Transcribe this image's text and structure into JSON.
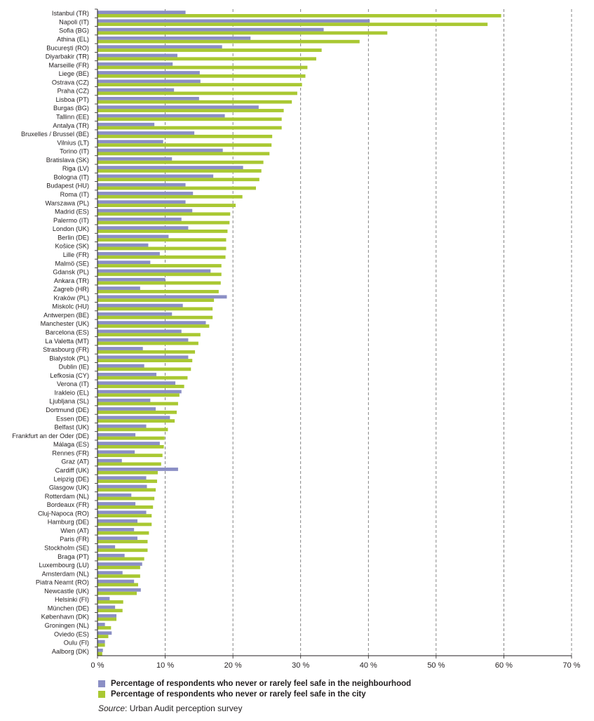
{
  "chart_data": {
    "type": "bar",
    "orientation": "horizontal",
    "categories": [
      "Istanbul (TR)",
      "Napoli (IT)",
      "Sofia (BG)",
      "Athina (EL)",
      "Bucureşti (RO)",
      "Diyarbakir (TR)",
      "Marseille (FR)",
      "Liege (BE)",
      "Ostrava (CZ)",
      "Praha (CZ)",
      "Lisboa (PT)",
      "Burgas (BG)",
      "Tallinn (EE)",
      "Antalya (TR)",
      "Bruxelles / Brussel (BE)",
      "Vilnius (LT)",
      "Torino (IT)",
      "Bratislava (SK)",
      "Riga (LV)",
      "Bologna (IT)",
      "Budapest (HU)",
      "Roma (IT)",
      "Warszawa (PL)",
      "Madrid (ES)",
      "Palermo (IT)",
      "London (UK)",
      "Berlin (DE)",
      "Košice (SK)",
      "Lille (FR)",
      "Malmö (SE)",
      "Gdansk (PL)",
      "Ankara (TR)",
      "Zagreb (HR)",
      "Kraków (PL)",
      "Miskolc (HU)",
      "Antwerpen (BE)",
      "Manchester (UK)",
      "Barcelona (ES)",
      "La Valetta (MT)",
      "Strasbourg (FR)",
      "Bialystok (PL)",
      "Dublin (IE)",
      "Lefkosia (CY)",
      "Verona (IT)",
      "Irakleio (EL)",
      "Ljubljana (SL)",
      "Dortmund (DE)",
      "Essen (DE)",
      "Belfast (UK)",
      "Frankfurt an der Oder (DE)",
      "Málaga (ES)",
      "Rennes (FR)",
      "Graz (AT)",
      "Cardiff (UK)",
      "Leipzig (DE)",
      "Glasgow (UK)",
      "Rotterdam (NL)",
      "Bordeaux (FR)",
      "Cluj-Napoca (RO)",
      "Hamburg (DE)",
      "Wien (AT)",
      "Paris (FR)",
      "Stockholm (SE)",
      "Braga (PT)",
      "Luxembourg (LU)",
      "Amsterdam (NL)",
      "Piatra Neamt (RO)",
      "Newcastle (UK)",
      "Helsinki (FI)",
      "München (DE)",
      "København (DK)",
      "Groningen (NL)",
      "Oviedo (ES)",
      "Oulu (FI)",
      "Aalborg (DK)"
    ],
    "series": [
      {
        "name": "Percentage of respondents who never or rarely feel safe in the neighbourhood",
        "values": [
          13,
          40.2,
          33.4,
          22.6,
          18.4,
          11.8,
          11.1,
          15.1,
          15.2,
          11.3,
          15,
          23.8,
          18.8,
          8.4,
          14.3,
          9.7,
          18.5,
          11,
          21.5,
          17.1,
          13,
          14.1,
          13,
          14,
          12.4,
          13.4,
          10.5,
          7.5,
          9.2,
          7.8,
          16.7,
          10,
          6.3,
          19.1,
          12.6,
          11,
          16,
          12.4,
          13.4,
          6.7,
          13.4,
          6.9,
          8.7,
          11.5,
          12.4,
          7.8,
          8.6,
          10.7,
          7.2,
          5.6,
          9.2,
          5.5,
          3.6,
          11.9,
          7.2,
          7.3,
          5,
          5.6,
          7.2,
          5.9,
          5.4,
          5.9,
          2.6,
          4,
          6.6,
          3.7,
          5.4,
          6.4,
          1.8,
          2.6,
          2.8,
          1.1,
          2.1,
          1.1,
          0.8
        ]
      },
      {
        "name": "Percentage of respondents who never or rarely feel safe in the city",
        "values": [
          59.6,
          57.6,
          42.8,
          38.7,
          33.1,
          32.3,
          31,
          30.7,
          30.2,
          29.5,
          28.7,
          27.5,
          27.2,
          27.2,
          25.8,
          25.7,
          25.4,
          24.5,
          24.2,
          23.9,
          23.4,
          21.4,
          20.4,
          19.6,
          19.5,
          19.2,
          19,
          19,
          18.9,
          18.3,
          18.3,
          18.2,
          17.9,
          17.2,
          17,
          17,
          16.5,
          15.2,
          14.9,
          14.4,
          14,
          13.8,
          13.3,
          12.8,
          12.1,
          11.9,
          11.7,
          11.4,
          10.4,
          9.9,
          9.8,
          9.6,
          9.4,
          8.9,
          8.8,
          8.6,
          8.4,
          8.2,
          8,
          8,
          7.6,
          7.4,
          7.4,
          6.9,
          6.3,
          6.3,
          6,
          5.8,
          3.8,
          3.7,
          2.8,
          2,
          1.6,
          1.1,
          0.7
        ]
      }
    ],
    "xlim": [
      0,
      70
    ],
    "xticks": [
      "0 %",
      "10 %",
      "20 %",
      "30 %",
      "40 %",
      "50 %",
      "60 %",
      "70 %"
    ],
    "grid": "vertical dashed",
    "legend_position": "bottom",
    "colors": {
      "neighbourhood": "#8b8fc5",
      "city": "#a9c832"
    }
  },
  "legend": {
    "neighbourhood": "Percentage of respondents who never or rarely feel safe in the neighbourhood",
    "city": "Percentage of respondents who never or rarely feel safe in the city"
  },
  "source": {
    "label": "Source",
    "text": ": Urban Audit perception survey"
  }
}
